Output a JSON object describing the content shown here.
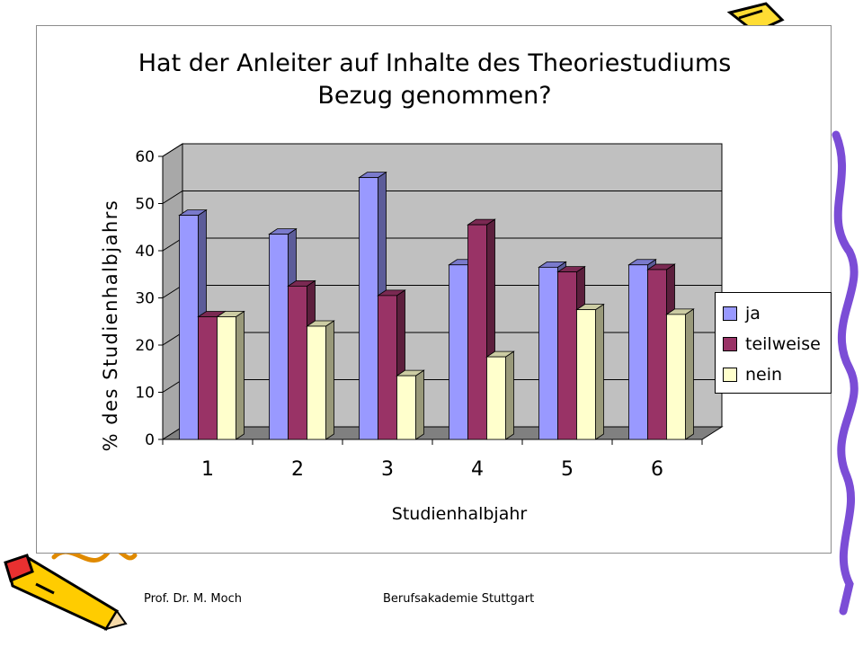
{
  "footer": {
    "left": "Prof. Dr. M. Moch",
    "right": "Berufsakademie Stuttgart"
  },
  "colors": {
    "ja": "#9999ff",
    "teilweise": "#993366",
    "nein": "#ffffcc",
    "wall": "#c0c0c0",
    "floor": "#808080"
  },
  "chart_data": {
    "type": "bar",
    "title": "Hat der Anleiter auf Inhalte des Theoriestudiums Bezug genommen?",
    "title_lines": [
      "Hat der Anleiter auf Inhalte des Theoriestudiums",
      "Bezug genommen?"
    ],
    "xlabel": "Studienhalbjahr",
    "ylabel": "% des Studienhalbjahrs",
    "categories": [
      "1",
      "2",
      "3",
      "4",
      "5",
      "6"
    ],
    "ylim": [
      0,
      60
    ],
    "yticks": [
      0,
      10,
      20,
      30,
      40,
      50,
      60
    ],
    "grid": true,
    "legend": "right",
    "style": "3d-clustered-column",
    "series": [
      {
        "name": "ja",
        "values": [
          47.5,
          43.5,
          55.5,
          37,
          36.5,
          37
        ]
      },
      {
        "name": "teilweise",
        "values": [
          26,
          32.5,
          30.5,
          45.5,
          35.5,
          36
        ]
      },
      {
        "name": "nein",
        "values": [
          26,
          24,
          13.5,
          17.5,
          27.5,
          26.5
        ]
      }
    ]
  }
}
